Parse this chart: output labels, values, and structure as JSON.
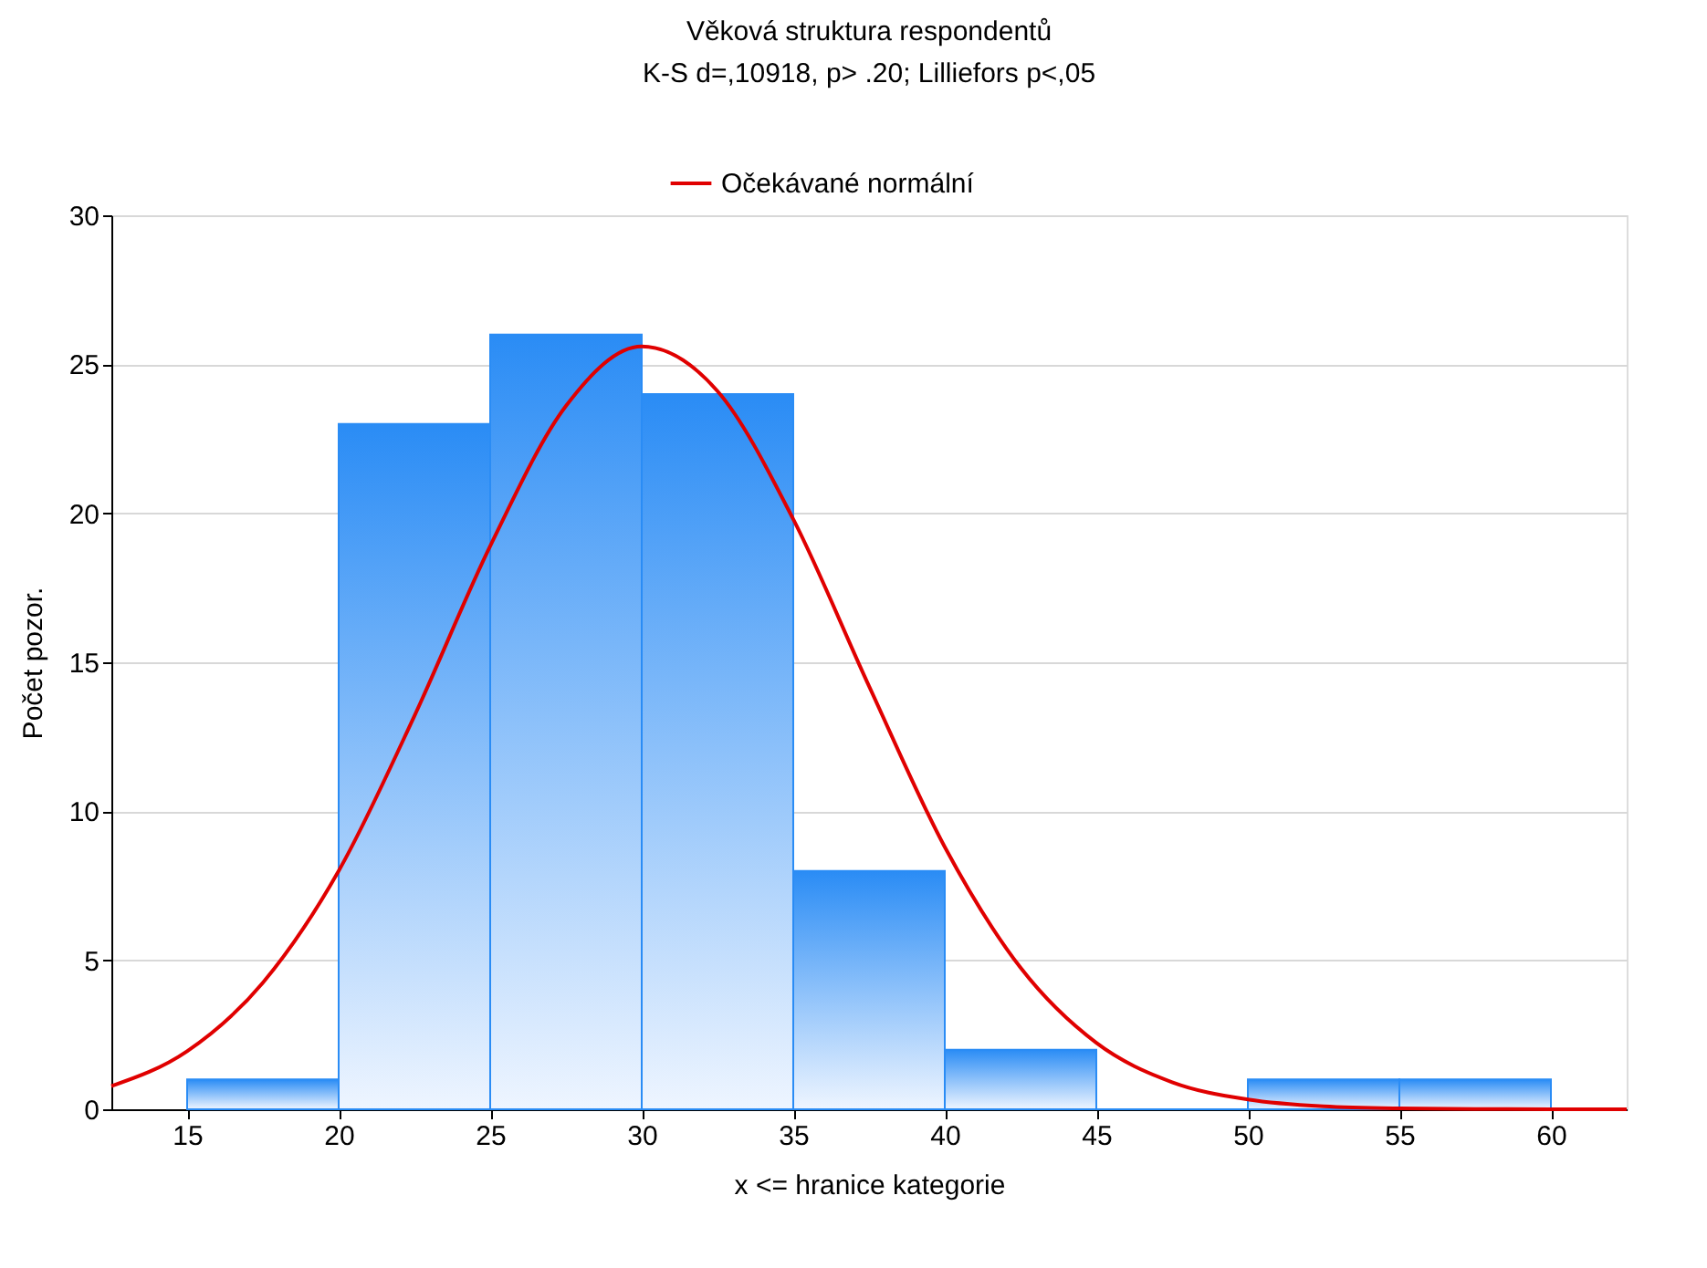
{
  "chart_data": {
    "type": "histogram",
    "title": "Věková struktura respondentů",
    "subtitle": "K-S d=,10918, p> .20; Lilliefors p<,05",
    "xlabel": "x <= hranice kategorie",
    "ylabel": "Počet pozor.",
    "bins": [
      15,
      20,
      25,
      30,
      35,
      40,
      45,
      50,
      55,
      60
    ],
    "values": [
      1,
      23,
      26,
      24,
      8,
      2,
      0,
      1,
      1
    ],
    "color": "#2a8cf5",
    "series": [
      {
        "type": "line",
        "name": "Očekávané normální",
        "color": "#e00000",
        "x": [
          12.5,
          15,
          17.5,
          20,
          22.5,
          25,
          27.5,
          30,
          32.5,
          35,
          37.5,
          40,
          42.5,
          45,
          47.5,
          50,
          52.5,
          55,
          57.5,
          60,
          62.5
        ],
        "values": [
          0.78,
          1.95,
          4.25,
          8.0,
          13.2,
          18.9,
          23.6,
          25.6,
          24.1,
          19.8,
          14.2,
          8.8,
          4.75,
          2.23,
          0.91,
          0.33,
          0.1,
          0.03,
          0.01,
          0,
          0
        ]
      }
    ],
    "xlim": [
      12.5,
      62.5
    ],
    "xticks": [
      15,
      20,
      25,
      30,
      35,
      40,
      45,
      50,
      55,
      60
    ],
    "ylim": [
      0,
      30
    ],
    "yticks": [
      0,
      5,
      10,
      15,
      20,
      25,
      30
    ],
    "grid": "y",
    "legend": "top"
  }
}
